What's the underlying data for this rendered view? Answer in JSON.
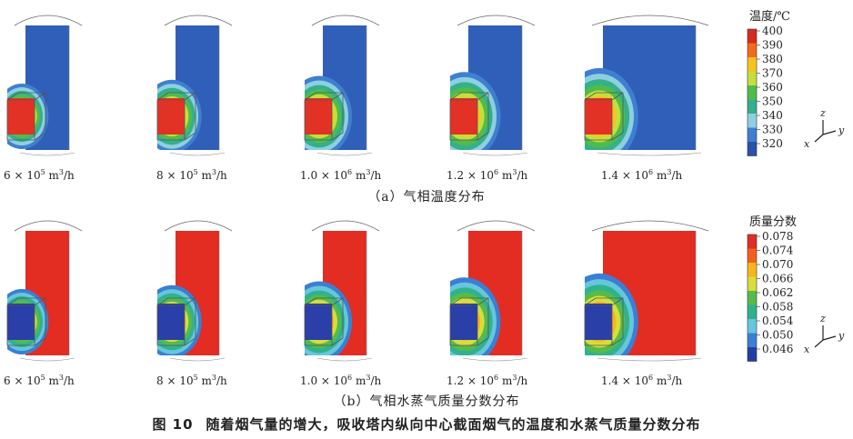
{
  "panel_a": {
    "caption": "（a）气相温度分布",
    "legend_title": "温度/℃",
    "legend_values": [
      "400",
      "390",
      "380",
      "370",
      "360",
      "350",
      "340",
      "330",
      "320"
    ],
    "legend_colors": [
      "#d62b1e",
      "#f26b1d",
      "#f9c21e",
      "#c4df3a",
      "#51bc4a",
      "#34b08b",
      "#8ecfe0",
      "#3f7fd2",
      "#2a52a8"
    ],
    "background_color": "#2f5fb8",
    "hot_color": "#e23226"
  },
  "panel_b": {
    "caption": "（b）气相水蒸气质量分数分布",
    "legend_title": "质量分数",
    "legend_values": [
      "0.078",
      "0.074",
      "0.070",
      "0.066",
      "0.062",
      "0.058",
      "0.054",
      "0.050",
      "0.046"
    ],
    "legend_colors": [
      "#e02e22",
      "#f4601c",
      "#f7b51e",
      "#d8dd3a",
      "#57bb4a",
      "#31b28f",
      "#66c6dc",
      "#3a7fd4",
      "#233ea3"
    ],
    "background_color": "#e32c22",
    "hot_color": "#2a3fa8"
  },
  "flow_labels": [
    {
      "coef": "6 × 10",
      "exp": "5",
      "unit": " m",
      "unit_exp": "3",
      "per": "/h"
    },
    {
      "coef": "8 × 10",
      "exp": "5",
      "unit": " m",
      "unit_exp": "3",
      "per": "/h"
    },
    {
      "coef": "1.0 × 10",
      "exp": "6",
      "unit": " m",
      "unit_exp": "3",
      "per": "/h"
    },
    {
      "coef": "1.2 × 10",
      "exp": "6",
      "unit": " m",
      "unit_exp": "3",
      "per": "/h"
    },
    {
      "coef": "1.4 × 10",
      "exp": "6",
      "unit": " m",
      "unit_exp": "3",
      "per": "/h"
    }
  ],
  "plume_scale": [
    0.75,
    0.85,
    0.95,
    1.05,
    1.15
  ],
  "axes": {
    "z": "z",
    "y": "y",
    "x": "x"
  },
  "figure_caption": {
    "number": "图 10",
    "text": "随着烟气量的增大，吸收塔内纵向中心截面烟气的温度和水蒸气质量分数分布"
  }
}
